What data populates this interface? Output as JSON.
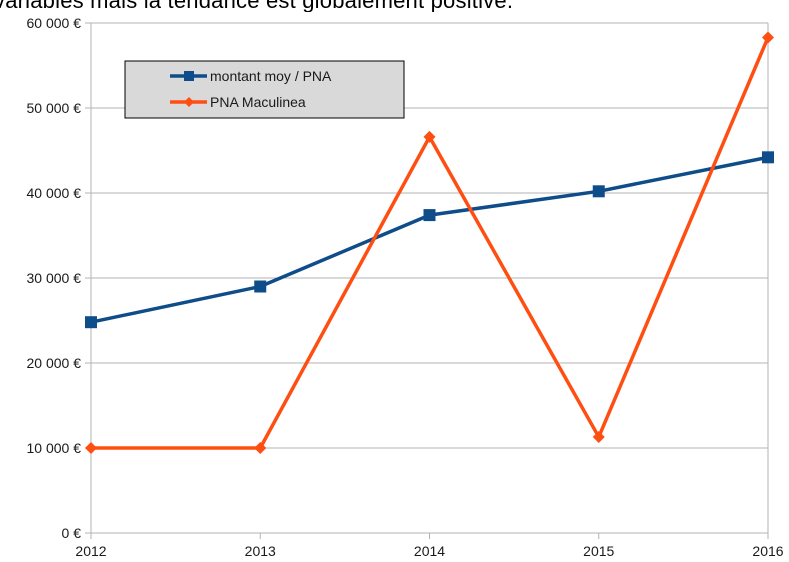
{
  "caption": {
    "text": "variables mais la tendance est globalement positive."
  },
  "chart_data": {
    "type": "line",
    "title": "",
    "xlabel": "",
    "ylabel": "",
    "x": [
      "2012",
      "2013",
      "2014",
      "2015",
      "2016"
    ],
    "ylim": [
      0,
      60000
    ],
    "yticks": [
      0,
      10000,
      20000,
      30000,
      40000,
      50000,
      60000
    ],
    "ytick_labels": [
      "0 €",
      "10 000 €",
      "20 000 €",
      "30 000 €",
      "40 000 €",
      "50 000 €",
      "60 000 €"
    ],
    "grid": "horizontal",
    "legend_position": "top-left",
    "series": [
      {
        "name": "montant moy / PNA",
        "color": "#0f4c8a",
        "marker": "square",
        "values": [
          24800,
          29000,
          37400,
          40200,
          44200
        ]
      },
      {
        "name": "PNA Maculinea",
        "color": "#ff4e12",
        "marker": "diamond",
        "values": [
          10000,
          10000,
          46600,
          11300,
          58300
        ]
      }
    ]
  }
}
